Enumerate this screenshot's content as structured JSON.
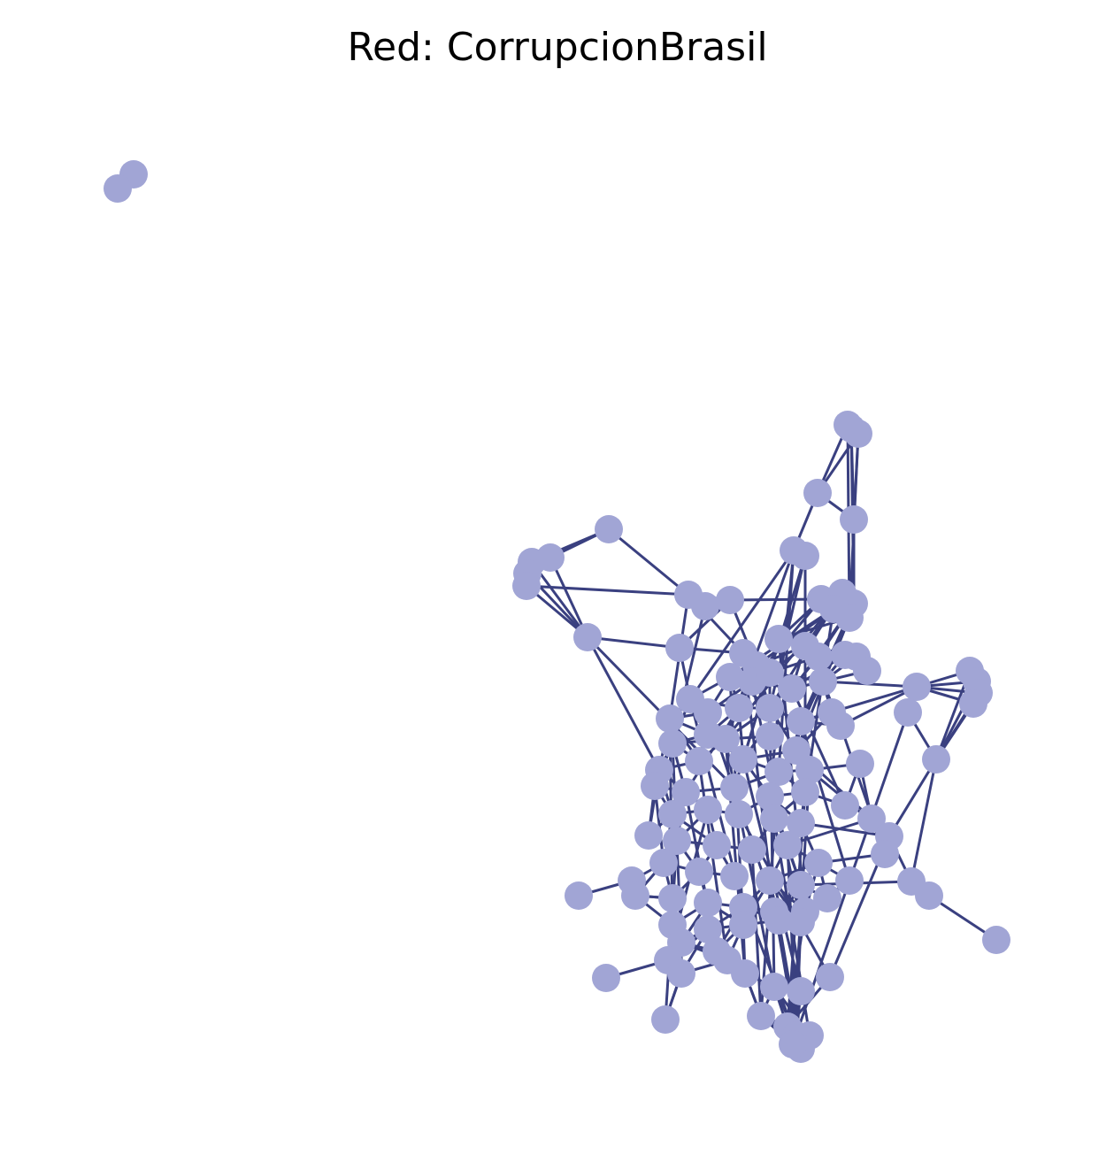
{
  "title": "Red: CorrupcionBrasil",
  "colors": {
    "node": "#a1a5d5",
    "edge": "#3a4080",
    "background": "#ffffff"
  }
}
